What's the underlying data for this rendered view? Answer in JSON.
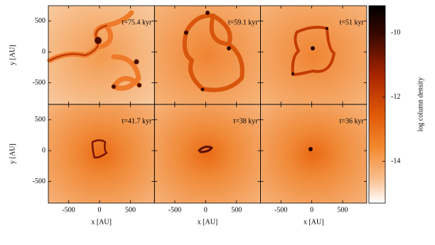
{
  "chart_data": {
    "type": "heatmap",
    "panels": [
      {
        "label": "t=75.4 kyr"
      },
      {
        "label": "t=59.1 kyr"
      },
      {
        "label": "t=51 kyr"
      },
      {
        "label": "t=41.7 kyr"
      },
      {
        "label": "t=38 kyr"
      },
      {
        "label": "t=36 kyr"
      }
    ],
    "xlabel": "x [AU]",
    "ylabel": "y [AU]",
    "xlim": [
      -830,
      890
    ],
    "ylim": [
      -850,
      750
    ],
    "xticks": [
      -500,
      0,
      500
    ],
    "yticks": [
      -500,
      0,
      500
    ],
    "colorbar": {
      "label": "log column density",
      "lim": [
        -15.3,
        -9.15
      ],
      "ticks": [
        -10,
        -12,
        -14
      ]
    }
  }
}
